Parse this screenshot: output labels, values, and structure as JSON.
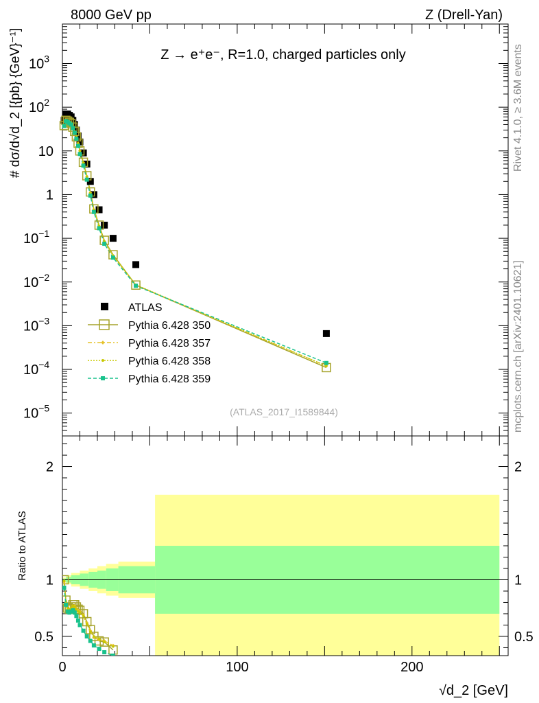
{
  "chart_data": [
    {
      "type": "scatter",
      "header_left": "8000 GeV pp",
      "header_right": "Z (Drell-Yan)",
      "title": "Z → e⁺e⁻, R=1.0, charged particles only",
      "ylabel": "# dσ/d√d_2 [{pb} {GeV}⁻¹]",
      "y_scale": "log",
      "ylim": [
        3e-06,
        8000
      ],
      "xlim": [
        0,
        255
      ],
      "y_ticks": [
        {
          "v": 1000.0,
          "base": "10",
          "exp": "3"
        },
        {
          "v": 100.0,
          "base": "10",
          "exp": "2"
        },
        {
          "v": 10.0,
          "base": "10",
          "exp": ""
        },
        {
          "v": 1,
          "base": "1",
          "exp": ""
        },
        {
          "v": 0.1,
          "base": "10",
          "exp": "−1"
        },
        {
          "v": 0.01,
          "base": "10",
          "exp": "−2"
        },
        {
          "v": 0.001,
          "base": "10",
          "exp": "−3"
        },
        {
          "v": 0.0001,
          "base": "10",
          "exp": "−4"
        },
        {
          "v": 1e-05,
          "base": "10",
          "exp": "−5"
        }
      ],
      "reference_tag": "(ATLAS_2017_I1589844)",
      "side_label_1": "Rivet 4.1.0, ≥ 3.6M events",
      "side_label_2": "mcplots.cern.ch [arXiv:2401.10621]",
      "legend_position": "lower-left",
      "colors": {
        "atlas": "#000000",
        "p350": "#a6a32b",
        "p357": "#e6c229",
        "p358": "#c8c800",
        "p359": "#19c28c"
      },
      "series": [
        {
          "name": "ATLAS",
          "x": [
            1,
            2,
            3,
            4,
            5,
            6,
            7,
            8,
            9,
            10,
            12,
            14,
            16,
            18,
            21,
            24,
            29,
            42,
            151
          ],
          "y": [
            50,
            70,
            70,
            65,
            60,
            50,
            40,
            30,
            22,
            16,
            9,
            5,
            2,
            1,
            0.45,
            0.2,
            0.1,
            0.025,
            0.00066
          ]
        },
        {
          "name": "Pythia 6.428 350",
          "x": [
            1,
            2,
            3,
            4,
            5,
            6,
            7,
            8,
            9,
            10,
            12,
            14,
            16,
            18,
            21,
            24,
            29,
            42,
            151
          ],
          "y": [
            38,
            50,
            48,
            45,
            42,
            35,
            28,
            21,
            15,
            10,
            5.5,
            2.7,
            1.15,
            0.47,
            0.2,
            0.09,
            0.042,
            0.0085,
            0.00011
          ]
        },
        {
          "name": "Pythia 6.428 357",
          "x": [
            1,
            2,
            3,
            4,
            5,
            6,
            7,
            8,
            9,
            10,
            12,
            14,
            16,
            18,
            21,
            24,
            29,
            42,
            151
          ],
          "y": [
            38,
            50,
            48,
            45,
            42,
            35,
            28,
            21,
            15,
            10,
            5.4,
            2.6,
            1.1,
            0.45,
            0.19,
            0.085,
            0.04,
            0.0085,
            0.00012
          ]
        },
        {
          "name": "Pythia 6.428 358",
          "x": [
            1,
            2,
            3,
            4,
            5,
            6,
            7,
            8,
            9,
            10,
            12,
            14,
            16,
            18,
            21,
            24,
            29,
            42,
            151
          ],
          "y": [
            39,
            51,
            49,
            46,
            43,
            35,
            28,
            21,
            15,
            10,
            5.4,
            2.6,
            1.1,
            0.45,
            0.19,
            0.085,
            0.04,
            0.0086,
            0.00012
          ]
        },
        {
          "name": "Pythia 6.428 359",
          "x": [
            1,
            2,
            3,
            4,
            5,
            6,
            7,
            8,
            9,
            10,
            12,
            14,
            16,
            18,
            21,
            24,
            29,
            42,
            151
          ],
          "y": [
            37,
            48,
            46,
            43,
            40,
            33,
            26,
            19,
            13,
            8.5,
            4.6,
            2.2,
            0.95,
            0.4,
            0.17,
            0.075,
            0.036,
            0.0082,
            0.00014
          ]
        }
      ]
    },
    {
      "type": "line",
      "ylabel": "Ratio to ATLAS",
      "xlabel": "√d_2 [GeV]",
      "xlim": [
        0,
        255
      ],
      "ylim": [
        0.33,
        2.27
      ],
      "x_ticks": [
        "0",
        "100",
        "200"
      ],
      "y_ticks": [
        "0.5",
        "1",
        "2"
      ],
      "reference_line": 1,
      "bands": [
        {
          "x0": 0,
          "x1": 2,
          "inner": 0.01,
          "outer": 0.02
        },
        {
          "x0": 2,
          "x1": 5,
          "inner": 0.025,
          "outer": 0.04
        },
        {
          "x0": 5,
          "x1": 10,
          "inner": 0.04,
          "outer": 0.06
        },
        {
          "x0": 10,
          "x1": 15,
          "inner": 0.055,
          "outer": 0.08
        },
        {
          "x0": 15,
          "x1": 20,
          "inner": 0.07,
          "outer": 0.1
        },
        {
          "x0": 20,
          "x1": 25,
          "inner": 0.08,
          "outer": 0.12
        },
        {
          "x0": 25,
          "x1": 32,
          "inner": 0.1,
          "outer": 0.14
        },
        {
          "x0": 32,
          "x1": 53,
          "inner": 0.12,
          "outer": 0.16
        },
        {
          "x0": 53,
          "x1": 250,
          "inner": 0.3,
          "outer": 0.75
        }
      ],
      "series": [
        {
          "name": "Pythia 6.428 350",
          "x": [
            1,
            2,
            3,
            4,
            5,
            6,
            7,
            8,
            9,
            10,
            12,
            14,
            16,
            18,
            21,
            24,
            29
          ],
          "y": [
            1.0,
            0.82,
            0.75,
            0.74,
            0.76,
            0.78,
            0.78,
            0.76,
            0.74,
            0.73,
            0.7,
            0.63,
            0.56,
            0.5,
            0.46,
            0.45,
            0.38
          ]
        },
        {
          "name": "Pythia 6.428 357",
          "x": [
            1,
            2,
            3,
            4,
            5,
            6,
            7,
            8,
            9,
            10,
            12,
            14,
            16,
            18,
            21,
            24,
            29
          ],
          "y": [
            0.98,
            0.8,
            0.74,
            0.73,
            0.75,
            0.77,
            0.77,
            0.75,
            0.73,
            0.72,
            0.69,
            0.62,
            0.55,
            0.49,
            0.47,
            0.46,
            0.42
          ]
        },
        {
          "name": "Pythia 6.428 358",
          "x": [
            1,
            2,
            3,
            4,
            5,
            6,
            7,
            8,
            9,
            10,
            12,
            14,
            16,
            18,
            21,
            24,
            29
          ],
          "y": [
            0.99,
            0.81,
            0.75,
            0.74,
            0.75,
            0.77,
            0.76,
            0.74,
            0.72,
            0.71,
            0.68,
            0.61,
            0.54,
            0.5,
            0.48,
            0.45,
            0.41
          ]
        },
        {
          "name": "Pythia 6.428 359",
          "x": [
            1,
            2,
            3,
            4,
            5,
            6,
            7,
            8,
            9,
            10,
            12,
            14,
            16,
            18,
            21,
            24,
            29
          ],
          "y": [
            0.93,
            0.78,
            0.72,
            0.71,
            0.72,
            0.73,
            0.71,
            0.68,
            0.64,
            0.6,
            0.55,
            0.5,
            0.46,
            0.42,
            0.39,
            0.36,
            0.33
          ]
        }
      ]
    }
  ]
}
